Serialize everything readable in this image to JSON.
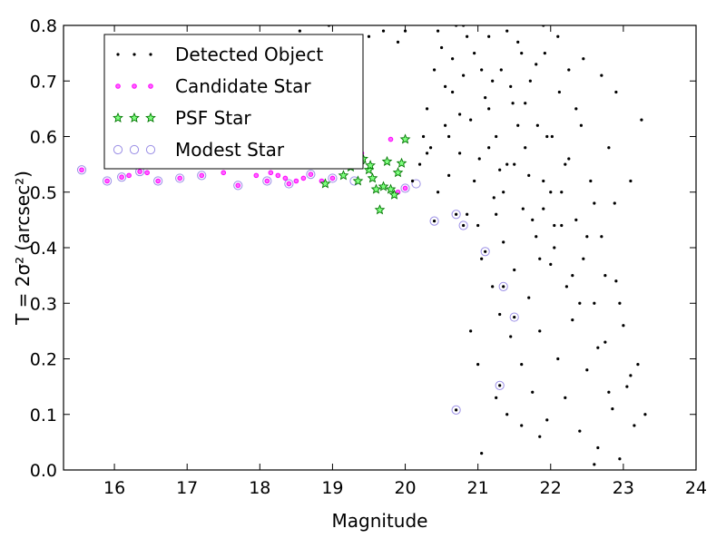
{
  "chart_data": {
    "type": "scatter",
    "title": "",
    "xlabel": "Magnitude",
    "ylabel": "T = 2σ² (arcsec²)",
    "xlim": [
      15.3,
      24
    ],
    "ylim": [
      0.0,
      0.8
    ],
    "xticks": [
      "16",
      "17",
      "18",
      "19",
      "20",
      "21",
      "22",
      "23",
      "24"
    ],
    "yticks": [
      "0.0",
      "0.1",
      "0.2",
      "0.3",
      "0.4",
      "0.5",
      "0.6",
      "0.7",
      "0.8"
    ],
    "grid": false,
    "legend_position": "top-left",
    "series": [
      {
        "name": "Detected Object",
        "marker": "dot",
        "color": "#000000",
        "points": [
          [
            20.1,
            0.52
          ],
          [
            20.2,
            0.55
          ],
          [
            20.25,
            0.6
          ],
          [
            20.3,
            0.65
          ],
          [
            20.35,
            0.58
          ],
          [
            20.4,
            0.72
          ],
          [
            20.45,
            0.5
          ],
          [
            20.5,
            0.76
          ],
          [
            20.55,
            0.62
          ],
          [
            20.6,
            0.53
          ],
          [
            20.65,
            0.68
          ],
          [
            20.7,
            0.8
          ],
          [
            20.75,
            0.57
          ],
          [
            20.8,
            0.71
          ],
          [
            20.85,
            0.46
          ],
          [
            20.9,
            0.63
          ],
          [
            20.95,
            0.75
          ],
          [
            21.0,
            0.44
          ],
          [
            21.02,
            0.56
          ],
          [
            21.05,
            0.38
          ],
          [
            21.1,
            0.67
          ],
          [
            21.15,
            0.78
          ],
          [
            21.2,
            0.33
          ],
          [
            21.22,
            0.49
          ],
          [
            21.25,
            0.6
          ],
          [
            21.3,
            0.28
          ],
          [
            21.32,
            0.72
          ],
          [
            21.35,
            0.41
          ],
          [
            21.4,
            0.55
          ],
          [
            21.45,
            0.24
          ],
          [
            21.48,
            0.66
          ],
          [
            21.5,
            0.36
          ],
          [
            21.55,
            0.77
          ],
          [
            21.6,
            0.19
          ],
          [
            21.62,
            0.47
          ],
          [
            21.65,
            0.58
          ],
          [
            21.7,
            0.31
          ],
          [
            21.72,
            0.7
          ],
          [
            21.75,
            0.14
          ],
          [
            21.8,
            0.42
          ],
          [
            21.82,
            0.62
          ],
          [
            21.85,
            0.25
          ],
          [
            21.9,
            0.52
          ],
          [
            21.92,
            0.75
          ],
          [
            21.95,
            0.09
          ],
          [
            22.0,
            0.37
          ],
          [
            22.02,
            0.6
          ],
          [
            22.05,
            0.44
          ],
          [
            22.1,
            0.2
          ],
          [
            22.12,
            0.68
          ],
          [
            22.15,
            0.5
          ],
          [
            22.2,
            0.13
          ],
          [
            22.22,
            0.33
          ],
          [
            22.25,
            0.56
          ],
          [
            22.3,
            0.27
          ],
          [
            22.35,
            0.45
          ],
          [
            22.4,
            0.07
          ],
          [
            22.42,
            0.62
          ],
          [
            22.45,
            0.38
          ],
          [
            22.5,
            0.18
          ],
          [
            22.55,
            0.52
          ],
          [
            22.6,
            0.3
          ],
          [
            22.65,
            0.04
          ],
          [
            22.7,
            0.42
          ],
          [
            22.75,
            0.23
          ],
          [
            22.8,
            0.58
          ],
          [
            22.85,
            0.11
          ],
          [
            22.9,
            0.34
          ],
          [
            22.95,
            0.02
          ],
          [
            23.0,
            0.26
          ],
          [
            23.05,
            0.15
          ],
          [
            23.1,
            0.52
          ],
          [
            23.2,
            0.19
          ],
          [
            23.25,
            0.63
          ],
          [
            23.3,
            0.1
          ],
          [
            23.15,
            0.08
          ],
          [
            22.88,
            0.48
          ],
          [
            22.6,
            0.01
          ],
          [
            21.05,
            0.03
          ],
          [
            20.9,
            0.25
          ],
          [
            21.0,
            0.19
          ],
          [
            21.25,
            0.13
          ],
          [
            21.4,
            0.1
          ],
          [
            21.6,
            0.08
          ],
          [
            21.85,
            0.06
          ],
          [
            20.45,
            0.79
          ],
          [
            20.8,
            0.8
          ],
          [
            21.4,
            0.79
          ],
          [
            21.9,
            0.8
          ],
          [
            22.1,
            0.78
          ],
          [
            22.45,
            0.74
          ],
          [
            22.7,
            0.71
          ],
          [
            22.9,
            0.68
          ],
          [
            18.55,
            0.79
          ],
          [
            19.5,
            0.78
          ],
          [
            19.9,
            0.77
          ],
          [
            19.7,
            0.79
          ],
          [
            20.0,
            0.79
          ],
          [
            19.3,
            0.76
          ],
          [
            18.95,
            0.8
          ],
          [
            21.35,
            0.5
          ],
          [
            21.75,
            0.45
          ],
          [
            22.05,
            0.4
          ],
          [
            22.3,
            0.35
          ],
          [
            21.55,
            0.62
          ],
          [
            21.15,
            0.58
          ],
          [
            20.95,
            0.52
          ],
          [
            21.65,
            0.66
          ],
          [
            22.2,
            0.55
          ],
          [
            22.6,
            0.48
          ],
          [
            21.2,
            0.7
          ],
          [
            21.8,
            0.73
          ],
          [
            20.65,
            0.74
          ],
          [
            21.45,
            0.69
          ],
          [
            22.35,
            0.65
          ],
          [
            21.95,
            0.6
          ],
          [
            20.75,
            0.64
          ],
          [
            20.55,
            0.69
          ],
          [
            21.3,
            0.54
          ],
          [
            21.9,
            0.47
          ],
          [
            22.15,
            0.44
          ],
          [
            21.7,
            0.53
          ],
          [
            22.5,
            0.42
          ],
          [
            22.75,
            0.35
          ],
          [
            22.95,
            0.3
          ],
          [
            21.05,
            0.72
          ],
          [
            20.85,
            0.78
          ],
          [
            21.6,
            0.75
          ],
          [
            22.25,
            0.72
          ],
          [
            21.15,
            0.65
          ],
          [
            20.3,
            0.57
          ],
          [
            20.6,
            0.6
          ],
          [
            21.5,
            0.55
          ],
          [
            22.0,
            0.5
          ],
          [
            21.25,
            0.46
          ],
          [
            21.85,
            0.38
          ],
          [
            22.4,
            0.3
          ],
          [
            22.65,
            0.22
          ],
          [
            23.1,
            0.17
          ],
          [
            22.8,
            0.14
          ]
        ]
      },
      {
        "name": "Candidate Star",
        "marker": "small-circle",
        "color": "#ff00ff",
        "points": [
          [
            15.55,
            0.54
          ],
          [
            15.9,
            0.52
          ],
          [
            16.1,
            0.527
          ],
          [
            16.2,
            0.53
          ],
          [
            16.35,
            0.537
          ],
          [
            16.45,
            0.535
          ],
          [
            16.6,
            0.52
          ],
          [
            16.9,
            0.525
          ],
          [
            17.2,
            0.53
          ],
          [
            17.5,
            0.535
          ],
          [
            17.7,
            0.512
          ],
          [
            17.95,
            0.53
          ],
          [
            18.1,
            0.52
          ],
          [
            18.25,
            0.53
          ],
          [
            18.4,
            0.515
          ],
          [
            18.5,
            0.52
          ],
          [
            18.6,
            0.525
          ],
          [
            18.7,
            0.532
          ],
          [
            18.85,
            0.52
          ],
          [
            19.0,
            0.525
          ],
          [
            19.4,
            0.57
          ],
          [
            19.8,
            0.595
          ],
          [
            20.0,
            0.507
          ],
          [
            19.9,
            0.5
          ],
          [
            18.15,
            0.535
          ],
          [
            18.35,
            0.525
          ]
        ]
      },
      {
        "name": "PSF Star",
        "marker": "star",
        "color": "#00cc00",
        "points": [
          [
            18.9,
            0.515
          ],
          [
            19.15,
            0.53
          ],
          [
            19.25,
            0.545
          ],
          [
            19.35,
            0.52
          ],
          [
            19.42,
            0.56
          ],
          [
            19.5,
            0.54
          ],
          [
            19.55,
            0.525
          ],
          [
            19.6,
            0.505
          ],
          [
            19.65,
            0.468
          ],
          [
            19.7,
            0.51
          ],
          [
            19.75,
            0.555
          ],
          [
            19.8,
            0.505
          ],
          [
            19.85,
            0.495
          ],
          [
            19.9,
            0.535
          ],
          [
            19.95,
            0.552
          ],
          [
            20.0,
            0.595
          ],
          [
            19.52,
            0.548
          ],
          [
            19.38,
            0.55
          ]
        ]
      },
      {
        "name": "Modest Star",
        "marker": "ring",
        "color": "#9b8fe6",
        "points": [
          [
            15.55,
            0.54
          ],
          [
            15.9,
            0.52
          ],
          [
            16.1,
            0.527
          ],
          [
            16.35,
            0.537
          ],
          [
            16.6,
            0.52
          ],
          [
            16.9,
            0.525
          ],
          [
            17.2,
            0.53
          ],
          [
            17.7,
            0.512
          ],
          [
            18.1,
            0.52
          ],
          [
            18.4,
            0.515
          ],
          [
            18.7,
            0.532
          ],
          [
            19.0,
            0.525
          ],
          [
            19.3,
            0.52
          ],
          [
            20.0,
            0.507
          ],
          [
            20.15,
            0.515
          ],
          [
            20.4,
            0.448
          ],
          [
            20.7,
            0.46
          ],
          [
            20.8,
            0.44
          ],
          [
            21.1,
            0.393
          ],
          [
            21.35,
            0.33
          ],
          [
            21.5,
            0.275
          ],
          [
            21.3,
            0.152
          ],
          [
            20.7,
            0.108
          ]
        ]
      }
    ]
  }
}
